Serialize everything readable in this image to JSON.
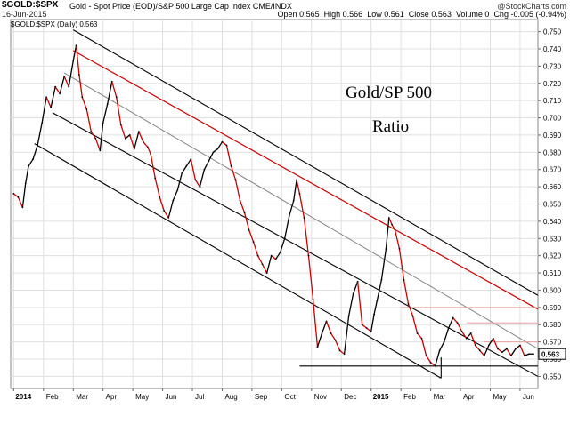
{
  "header": {
    "symbol": "$GOLD:$SPX",
    "description": "Gold - Spot Price (EOD)/S&P 500 Large Cap Index  CME/INDX",
    "brand": "@StockCharts.com",
    "date": "16-Jun-2015",
    "quote": {
      "open_label": "Open",
      "open": "0.565",
      "high_label": "High",
      "high": "0.566",
      "low_label": "Low",
      "low": "0.561",
      "close_label": "Close",
      "close": "0.563",
      "volume_label": "Volume",
      "volume": "0",
      "chg_label": "Chg",
      "chg": "-0.005 (-0.94%)"
    },
    "legend": "$GOLD:$SPX (Daily) 0.563"
  },
  "colors": {
    "up": "#000000",
    "down": "#cc0000",
    "channel": "#000000",
    "channel_mid": "#777777",
    "red_line": "#cc0000",
    "horizontal_pink": "#e8a0a0",
    "grid": "#e0e0e0"
  },
  "chart_data": {
    "type": "line",
    "annotation_line1": "Gold/SP 500",
    "annotation_line2": "Ratio",
    "ylim": [
      0.543,
      0.757
    ],
    "y_ticks": [
      "0.750",
      "0.740",
      "0.730",
      "0.720",
      "0.710",
      "0.700",
      "0.690",
      "0.680",
      "0.670",
      "0.660",
      "0.650",
      "0.640",
      "0.630",
      "0.620",
      "0.610",
      "0.600",
      "0.590",
      "0.580",
      "0.570",
      "0.560",
      "0.550"
    ],
    "last_value_label": "0.563",
    "x_ticks": [
      {
        "label": "2014",
        "t": 0.0,
        "bold": true
      },
      {
        "label": "Feb",
        "t": 1.0
      },
      {
        "label": "Mar",
        "t": 2.0
      },
      {
        "label": "Apr",
        "t": 3.0
      },
      {
        "label": "May",
        "t": 4.0
      },
      {
        "label": "Jun",
        "t": 5.0
      },
      {
        "label": "Jul",
        "t": 6.0
      },
      {
        "label": "Aug",
        "t": 7.0
      },
      {
        "label": "Sep",
        "t": 8.0
      },
      {
        "label": "Oct",
        "t": 9.0
      },
      {
        "label": "Nov",
        "t": 10.0
      },
      {
        "label": "Dec",
        "t": 11.0
      },
      {
        "label": "2015",
        "t": 12.0,
        "bold": true
      },
      {
        "label": "Feb",
        "t": 13.0
      },
      {
        "label": "Mar",
        "t": 14.0
      },
      {
        "label": "Apr",
        "t": 15.0
      },
      {
        "label": "May",
        "t": 16.0
      },
      {
        "label": "Jun",
        "t": 17.0
      }
    ],
    "x_domain": [
      -0.1,
      17.6
    ],
    "series": [
      {
        "values": [
          [
            0.0,
            0.656
          ],
          [
            0.15,
            0.654
          ],
          [
            0.3,
            0.648
          ],
          [
            0.4,
            0.662
          ],
          [
            0.5,
            0.672
          ],
          [
            0.65,
            0.676
          ],
          [
            0.8,
            0.684
          ],
          [
            0.95,
            0.697
          ],
          [
            1.1,
            0.712
          ],
          [
            1.25,
            0.706
          ],
          [
            1.4,
            0.718
          ],
          [
            1.55,
            0.714
          ],
          [
            1.7,
            0.724
          ],
          [
            1.85,
            0.718
          ],
          [
            2.0,
            0.733
          ],
          [
            2.1,
            0.742
          ],
          [
            2.2,
            0.725
          ],
          [
            2.3,
            0.712
          ],
          [
            2.45,
            0.705
          ],
          [
            2.6,
            0.692
          ],
          [
            2.75,
            0.688
          ],
          [
            2.9,
            0.681
          ],
          [
            3.0,
            0.697
          ],
          [
            3.15,
            0.708
          ],
          [
            3.3,
            0.721
          ],
          [
            3.45,
            0.712
          ],
          [
            3.6,
            0.696
          ],
          [
            3.75,
            0.688
          ],
          [
            3.9,
            0.69
          ],
          [
            4.05,
            0.682
          ],
          [
            4.2,
            0.692
          ],
          [
            4.35,
            0.686
          ],
          [
            4.5,
            0.683
          ],
          [
            4.6,
            0.679
          ],
          [
            4.75,
            0.665
          ],
          [
            4.9,
            0.654
          ],
          [
            5.05,
            0.646
          ],
          [
            5.2,
            0.642
          ],
          [
            5.35,
            0.652
          ],
          [
            5.5,
            0.658
          ],
          [
            5.65,
            0.668
          ],
          [
            5.8,
            0.672
          ],
          [
            5.95,
            0.676
          ],
          [
            6.1,
            0.664
          ],
          [
            6.25,
            0.66
          ],
          [
            6.4,
            0.67
          ],
          [
            6.55,
            0.675
          ],
          [
            6.7,
            0.68
          ],
          [
            6.85,
            0.682
          ],
          [
            7.0,
            0.686
          ],
          [
            7.15,
            0.684
          ],
          [
            7.3,
            0.672
          ],
          [
            7.45,
            0.664
          ],
          [
            7.6,
            0.652
          ],
          [
            7.75,
            0.645
          ],
          [
            7.9,
            0.635
          ],
          [
            8.05,
            0.628
          ],
          [
            8.2,
            0.62
          ],
          [
            8.35,
            0.615
          ],
          [
            8.5,
            0.61
          ],
          [
            8.65,
            0.62
          ],
          [
            8.8,
            0.618
          ],
          [
            8.95,
            0.622
          ],
          [
            9.1,
            0.63
          ],
          [
            9.25,
            0.643
          ],
          [
            9.4,
            0.652
          ],
          [
            9.5,
            0.664
          ],
          [
            9.6,
            0.656
          ],
          [
            9.75,
            0.642
          ],
          [
            9.9,
            0.62
          ],
          [
            10.05,
            0.595
          ],
          [
            10.2,
            0.567
          ],
          [
            10.35,
            0.575
          ],
          [
            10.5,
            0.582
          ],
          [
            10.65,
            0.575
          ],
          [
            10.8,
            0.571
          ],
          [
            10.95,
            0.565
          ],
          [
            11.1,
            0.563
          ],
          [
            11.25,
            0.585
          ],
          [
            11.4,
            0.598
          ],
          [
            11.55,
            0.605
          ],
          [
            11.7,
            0.58
          ],
          [
            11.85,
            0.578
          ],
          [
            12.0,
            0.576
          ],
          [
            12.1,
            0.586
          ],
          [
            12.2,
            0.594
          ],
          [
            12.35,
            0.606
          ],
          [
            12.5,
            0.624
          ],
          [
            12.6,
            0.642
          ],
          [
            12.7,
            0.638
          ],
          [
            12.8,
            0.635
          ],
          [
            12.95,
            0.624
          ],
          [
            13.1,
            0.606
          ],
          [
            13.25,
            0.592
          ],
          [
            13.4,
            0.585
          ],
          [
            13.55,
            0.575
          ],
          [
            13.7,
            0.572
          ],
          [
            13.85,
            0.562
          ],
          [
            14.0,
            0.558
          ],
          [
            14.15,
            0.556
          ],
          [
            14.3,
            0.565
          ],
          [
            14.45,
            0.57
          ],
          [
            14.6,
            0.578
          ],
          [
            14.75,
            0.584
          ],
          [
            14.9,
            0.581
          ],
          [
            15.05,
            0.576
          ],
          [
            15.2,
            0.572
          ],
          [
            15.35,
            0.575
          ],
          [
            15.5,
            0.568
          ],
          [
            15.65,
            0.565
          ],
          [
            15.8,
            0.562
          ],
          [
            15.95,
            0.568
          ],
          [
            16.1,
            0.572
          ],
          [
            16.25,
            0.566
          ],
          [
            16.4,
            0.564
          ],
          [
            16.55,
            0.566
          ],
          [
            16.7,
            0.562
          ],
          [
            16.85,
            0.566
          ],
          [
            17.0,
            0.568
          ],
          [
            17.15,
            0.562
          ],
          [
            17.3,
            0.563
          ],
          [
            17.45,
            0.563
          ]
        ]
      }
    ],
    "trend_lines": [
      {
        "kind": "channel",
        "from": [
          2.0,
          0.751
        ],
        "to": [
          17.6,
          0.597
        ]
      },
      {
        "kind": "red",
        "from": [
          2.0,
          0.739
        ],
        "to": [
          17.6,
          0.589
        ]
      },
      {
        "kind": "mid",
        "from": [
          1.7,
          0.726
        ],
        "to": [
          17.6,
          0.566
        ]
      },
      {
        "kind": "channel",
        "from": [
          1.3,
          0.703
        ],
        "to": [
          17.6,
          0.55
        ]
      },
      {
        "kind": "channel",
        "from": [
          0.7,
          0.685
        ],
        "to": [
          14.35,
          0.549
        ]
      },
      {
        "kind": "horizontal",
        "from": [
          9.6,
          0.556
        ],
        "to": [
          17.6,
          0.556
        ]
      },
      {
        "kind": "pink",
        "from": [
          13.0,
          0.59
        ],
        "to": [
          17.6,
          0.59
        ]
      },
      {
        "kind": "pink",
        "from": [
          15.2,
          0.581
        ],
        "to": [
          17.6,
          0.581
        ]
      },
      {
        "kind": "pink",
        "from": [
          15.8,
          0.57
        ],
        "to": [
          17.6,
          0.57
        ]
      },
      {
        "kind": "vertical",
        "from": [
          14.35,
          0.549
        ],
        "to": [
          14.35,
          0.561
        ]
      }
    ],
    "grid": true
  }
}
